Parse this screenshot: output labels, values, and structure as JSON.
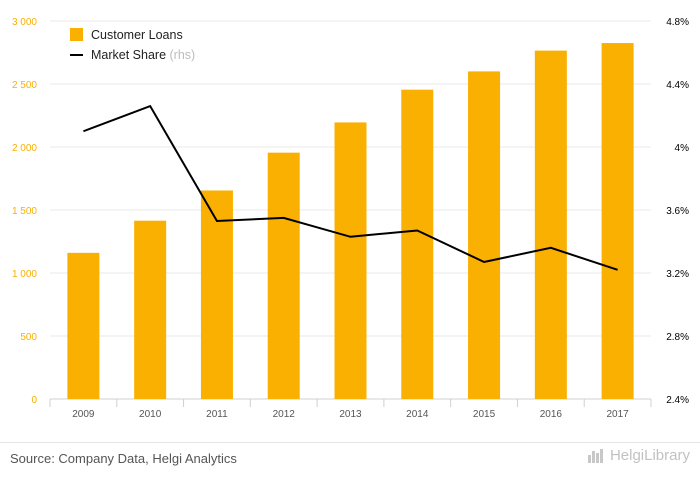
{
  "chart_data": {
    "type": "bar",
    "categories": [
      "2009",
      "2010",
      "2011",
      "2012",
      "2013",
      "2014",
      "2015",
      "2016",
      "2017"
    ],
    "series": [
      {
        "name": "Customer Loans",
        "type": "bar",
        "axis": "left",
        "color": "#f9b000",
        "values": [
          1160,
          1415,
          1655,
          1955,
          2195,
          2455,
          2600,
          2765,
          2825
        ]
      },
      {
        "name": "Market Share",
        "rhs_marker": "(rhs)",
        "type": "line",
        "axis": "right",
        "color": "#000000",
        "values": [
          4.1,
          4.26,
          3.53,
          3.55,
          3.43,
          3.47,
          3.27,
          3.36,
          3.22
        ]
      }
    ],
    "y_left": {
      "ylim": [
        0,
        3000
      ],
      "ticks": [
        0,
        500,
        1000,
        1500,
        2000,
        2500,
        3000
      ],
      "tick_labels": [
        "0",
        "500",
        "1 000",
        "1 500",
        "2 000",
        "2 500",
        "3 000"
      ],
      "label_color": "#f9b000"
    },
    "y_right": {
      "ylim": [
        2.4,
        4.8
      ],
      "ticks": [
        2.4,
        2.8,
        3.2,
        3.6,
        4.0,
        4.4,
        4.8
      ],
      "tick_labels": [
        "2.4%",
        "2.8%",
        "3.2%",
        "3.6%",
        "4%",
        "4.4%",
        "4.8%"
      ],
      "label_color": "#000000"
    },
    "grid": true,
    "legend": "top-left"
  },
  "footer": {
    "source": "Source: Company Data, Helgi Analytics",
    "brand": "HelgiLibrary"
  }
}
